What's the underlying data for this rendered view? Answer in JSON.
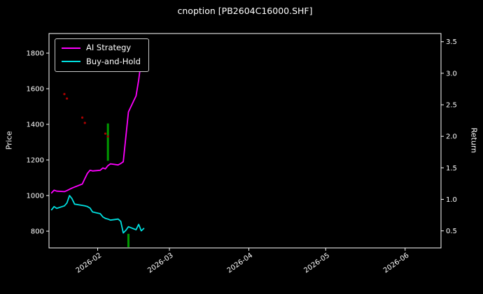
{
  "chart_data": {
    "type": "line",
    "title": "cnoption [PB2604C16000.SHF]",
    "xlabel": "",
    "ylabel_left": "Price",
    "ylabel_right": "Return",
    "background": "#000000",
    "text_color": "#ffffff",
    "grid": false,
    "legend_position": "upper-left",
    "xlim": [
      "2026-01-13",
      "2026-06-15"
    ],
    "ylim_left": [
      706,
      1910
    ],
    "ylim_right": [
      0.23,
      3.63
    ],
    "x_tick_labels": [
      "2026-02",
      "2026-03",
      "2026-04",
      "2026-05",
      "2026-06"
    ],
    "x_tick_dates": [
      "2026-02-01",
      "2026-03-01",
      "2026-04-01",
      "2026-05-01",
      "2026-06-01"
    ],
    "y_ticks_left": [
      800,
      1000,
      1200,
      1400,
      1600,
      1800
    ],
    "y_ticks_right": [
      0.5,
      1.0,
      1.5,
      2.0,
      2.5,
      3.0,
      3.5
    ],
    "y_tick_labels_right": [
      "0.5",
      "1.0",
      "1.5",
      "2.0",
      "2.5",
      "3.0",
      "3.5"
    ],
    "dates": [
      "2026-01-14",
      "2026-01-15",
      "2026-01-16",
      "2026-01-19",
      "2026-01-20",
      "2026-01-21",
      "2026-01-22",
      "2026-01-23",
      "2026-01-26",
      "2026-01-27",
      "2026-01-28",
      "2026-01-29",
      "2026-01-30",
      "2026-02-02",
      "2026-02-03",
      "2026-02-04",
      "2026-02-05",
      "2026-02-06",
      "2026-02-09",
      "2026-02-10",
      "2026-02-11",
      "2026-02-12",
      "2026-02-13",
      "2026-02-16",
      "2026-02-17",
      "2026-02-18",
      "2026-02-19"
    ],
    "series": [
      {
        "name": "AI Strategy",
        "color": "#ff00ff",
        "axis": "left",
        "values": [
          1015,
          1030,
          1025,
          1022,
          1028,
          1035,
          1042,
          1048,
          1065,
          1095,
          1125,
          1142,
          1138,
          1142,
          1155,
          1150,
          1168,
          1178,
          1172,
          1180,
          1190,
          1330,
          1470,
          1560,
          1648,
          1760,
          1845
        ]
      },
      {
        "name": "Buy-and-Hold",
        "color": "#00e0e0",
        "axis": "left",
        "values": [
          920,
          938,
          928,
          942,
          958,
          1000,
          982,
          952,
          945,
          942,
          938,
          930,
          908,
          898,
          880,
          872,
          868,
          862,
          868,
          855,
          790,
          805,
          825,
          808,
          838,
          802,
          815
        ]
      }
    ],
    "markers": {
      "green_bar_color": "#009900",
      "green_bars": [
        {
          "date": "2026-02-05",
          "low": 1195,
          "high": 1405
        },
        {
          "date": "2026-02-13",
          "low": 710,
          "high": 785
        }
      ],
      "red_dot_color": "#aa0000",
      "red_dots": [
        {
          "date": "2026-01-19",
          "price": 1570
        },
        {
          "date": "2026-01-20",
          "price": 1545
        },
        {
          "date": "2026-01-26",
          "price": 1438
        },
        {
          "date": "2026-01-27",
          "price": 1408
        },
        {
          "date": "2026-02-04",
          "price": 1348
        },
        {
          "date": "2026-02-05",
          "price": 1332
        }
      ]
    }
  }
}
